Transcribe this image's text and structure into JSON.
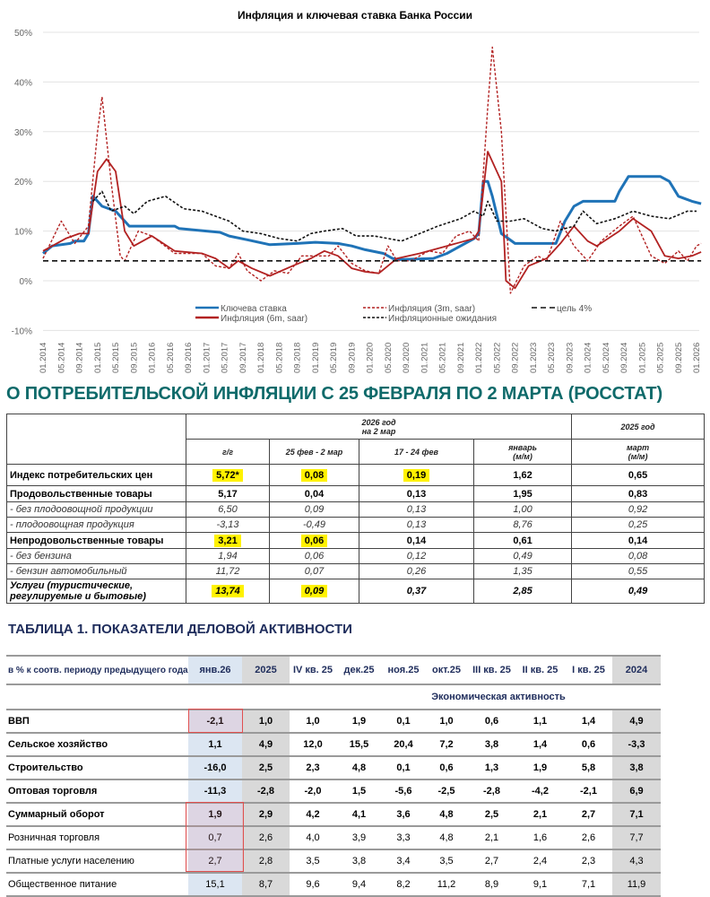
{
  "chart_data": {
    "type": "line",
    "title": "Инфляция и ключевая ставка Банка России",
    "ylim": [
      -10,
      50
    ],
    "yticks": [
      "-10%",
      "0%",
      "10%",
      "20%",
      "30%",
      "40%",
      "50%"
    ],
    "ytick_values": [
      -10,
      0,
      10,
      20,
      30,
      40,
      50
    ],
    "xlim": [
      "2014-01",
      "2026-01"
    ],
    "xticks": [
      "01.2014",
      "05.2014",
      "09.2014",
      "01.2015",
      "05.2015",
      "09.2015",
      "01.2016",
      "05.2016",
      "09.2016",
      "01.2017",
      "05.2017",
      "09.2017",
      "01.2018",
      "05.2018",
      "09.2018",
      "01.2019",
      "05.2019",
      "09.2019",
      "01.2020",
      "05.2020",
      "09.2020",
      "01.2021",
      "05.2021",
      "09.2021",
      "01.2022",
      "05.2022",
      "09.2022",
      "01.2023",
      "05.2023",
      "09.2023",
      "01.2024",
      "05.2024",
      "09.2024",
      "01.2025",
      "05.2025",
      "09.2025",
      "01.2026"
    ],
    "grid": true,
    "legend_position": "bottom",
    "series": [
      {
        "name": "Ключева ставка",
        "color": "#1f73b7",
        "style": "solid",
        "points": [
          [
            "2014-01",
            5.5
          ],
          [
            "2014-03",
            7
          ],
          [
            "2014-07",
            7.5
          ],
          [
            "2014-08",
            8
          ],
          [
            "2014-10",
            8
          ],
          [
            "2014-11",
            9.5
          ],
          [
            "2014-12",
            17
          ],
          [
            "2015-02",
            15
          ],
          [
            "2015-05",
            14
          ],
          [
            "2015-08",
            11
          ],
          [
            "2016-06",
            11
          ],
          [
            "2016-07",
            10.5
          ],
          [
            "2017-01",
            10
          ],
          [
            "2017-04",
            9.75
          ],
          [
            "2017-06",
            9
          ],
          [
            "2017-10",
            8.25
          ],
          [
            "2018-03",
            7.25
          ],
          [
            "2018-09",
            7.5
          ],
          [
            "2019-01",
            7.75
          ],
          [
            "2019-06",
            7.5
          ],
          [
            "2019-09",
            7
          ],
          [
            "2019-12",
            6.25
          ],
          [
            "2020-04",
            5.5
          ],
          [
            "2020-06",
            4.5
          ],
          [
            "2020-07",
            4.25
          ],
          [
            "2021-03",
            4.5
          ],
          [
            "2021-06",
            5.5
          ],
          [
            "2021-10",
            7.5
          ],
          [
            "2021-12",
            8.5
          ],
          [
            "2022-01",
            9.5
          ],
          [
            "2022-02",
            20
          ],
          [
            "2022-03",
            20
          ],
          [
            "2022-04",
            17
          ],
          [
            "2022-06",
            9.5
          ],
          [
            "2022-09",
            7.5
          ],
          [
            "2023-06",
            7.5
          ],
          [
            "2023-08",
            12
          ],
          [
            "2023-10",
            15
          ],
          [
            "2023-12",
            16
          ],
          [
            "2024-07",
            16
          ],
          [
            "2024-08",
            18
          ],
          [
            "2024-10",
            21
          ],
          [
            "2025-05",
            21
          ],
          [
            "2025-07",
            20
          ],
          [
            "2025-09",
            17
          ],
          [
            "2025-12",
            16
          ],
          [
            "2026-02",
            15.5
          ]
        ]
      },
      {
        "name": "Инфляция (6m, saar)",
        "color": "#b22222",
        "style": "solid",
        "points": [
          [
            "2014-01",
            6
          ],
          [
            "2014-06",
            8.5
          ],
          [
            "2014-09",
            9.5
          ],
          [
            "2014-11",
            9.5
          ],
          [
            "2015-01",
            22
          ],
          [
            "2015-03",
            24.5
          ],
          [
            "2015-05",
            22
          ],
          [
            "2015-07",
            10
          ],
          [
            "2015-09",
            7
          ],
          [
            "2016-01",
            9
          ],
          [
            "2016-06",
            6
          ],
          [
            "2016-12",
            5.5
          ],
          [
            "2017-03",
            4.5
          ],
          [
            "2017-06",
            2.5
          ],
          [
            "2017-08",
            4
          ],
          [
            "2017-11",
            2.5
          ],
          [
            "2018-03",
            1
          ],
          [
            "2018-08",
            3
          ],
          [
            "2018-12",
            4.5
          ],
          [
            "2019-03",
            6
          ],
          [
            "2019-06",
            5
          ],
          [
            "2019-09",
            2.5
          ],
          [
            "2019-12",
            1.8
          ],
          [
            "2020-03",
            1.5
          ],
          [
            "2020-07",
            4.5
          ],
          [
            "2020-12",
            5.5
          ],
          [
            "2021-06",
            7
          ],
          [
            "2021-12",
            8.5
          ],
          [
            "2022-01",
            10
          ],
          [
            "2022-03",
            26
          ],
          [
            "2022-06",
            20
          ],
          [
            "2022-07",
            0
          ],
          [
            "2022-09",
            -1.5
          ],
          [
            "2022-12",
            3
          ],
          [
            "2023-04",
            4.5
          ],
          [
            "2023-07",
            7.5
          ],
          [
            "2023-10",
            11
          ],
          [
            "2024-01",
            8
          ],
          [
            "2024-03",
            7
          ],
          [
            "2024-08",
            10
          ],
          [
            "2024-11",
            12.5
          ],
          [
            "2025-03",
            10
          ],
          [
            "2025-06",
            5
          ],
          [
            "2025-09",
            4.5
          ],
          [
            "2025-12",
            5
          ],
          [
            "2026-02",
            5.8
          ]
        ]
      },
      {
        "name": "Инфляция (3m, saar)",
        "color": "#b22222",
        "style": "dashed",
        "points": [
          [
            "2014-01",
            4.5
          ],
          [
            "2014-05",
            12
          ],
          [
            "2014-08",
            7.5
          ],
          [
            "2014-11",
            11
          ],
          [
            "2015-01",
            30
          ],
          [
            "2015-02",
            37
          ],
          [
            "2015-04",
            20
          ],
          [
            "2015-06",
            5
          ],
          [
            "2015-07",
            4
          ],
          [
            "2015-10",
            10
          ],
          [
            "2016-01",
            9
          ],
          [
            "2016-06",
            5.5
          ],
          [
            "2016-12",
            5.5
          ],
          [
            "2017-03",
            3
          ],
          [
            "2017-06",
            2.5
          ],
          [
            "2017-08",
            5.5
          ],
          [
            "2017-10",
            2
          ],
          [
            "2018-01",
            0
          ],
          [
            "2018-04",
            2
          ],
          [
            "2018-07",
            1.5
          ],
          [
            "2018-10",
            5
          ],
          [
            "2019-01",
            5
          ],
          [
            "2019-04",
            5
          ],
          [
            "2019-06",
            7
          ],
          [
            "2019-09",
            3.5
          ],
          [
            "2019-12",
            2
          ],
          [
            "2020-03",
            1.5
          ],
          [
            "2020-05",
            7
          ],
          [
            "2020-07",
            4
          ],
          [
            "2020-10",
            4
          ],
          [
            "2021-02",
            6
          ],
          [
            "2021-05",
            5.5
          ],
          [
            "2021-08",
            9
          ],
          [
            "2021-11",
            10
          ],
          [
            "2022-01",
            8
          ],
          [
            "2022-03",
            35
          ],
          [
            "2022-04",
            47
          ],
          [
            "2022-06",
            30
          ],
          [
            "2022-08",
            -2.5
          ],
          [
            "2022-11",
            3
          ],
          [
            "2023-02",
            5
          ],
          [
            "2023-04",
            4
          ],
          [
            "2023-07",
            12
          ],
          [
            "2023-10",
            7
          ],
          [
            "2024-01",
            4
          ],
          [
            "2024-04",
            8
          ],
          [
            "2024-08",
            11
          ],
          [
            "2024-11",
            13
          ],
          [
            "2025-03",
            5
          ],
          [
            "2025-06",
            3.5
          ],
          [
            "2025-09",
            6
          ],
          [
            "2025-11",
            4
          ],
          [
            "2026-01",
            7
          ],
          [
            "2026-02",
            7.5
          ]
        ]
      },
      {
        "name": "Инфляционные ожидания",
        "color": "#111111",
        "style": "dotted",
        "points": [
          [
            "2014-12",
            16
          ],
          [
            "2015-02",
            18
          ],
          [
            "2015-04",
            14
          ],
          [
            "2015-07",
            15
          ],
          [
            "2015-09",
            13.5
          ],
          [
            "2015-12",
            16
          ],
          [
            "2016-04",
            17
          ],
          [
            "2016-08",
            14.5
          ],
          [
            "2016-12",
            14
          ],
          [
            "2017-03",
            13
          ],
          [
            "2017-06",
            12
          ],
          [
            "2017-09",
            10
          ],
          [
            "2018-01",
            9.5
          ],
          [
            "2018-05",
            8.5
          ],
          [
            "2018-09",
            8
          ],
          [
            "2018-12",
            9.5
          ],
          [
            "2019-03",
            10
          ],
          [
            "2019-07",
            10.5
          ],
          [
            "2019-10",
            9
          ],
          [
            "2020-02",
            9
          ],
          [
            "2020-05",
            8.5
          ],
          [
            "2020-08",
            8
          ],
          [
            "2020-12",
            9.5
          ],
          [
            "2021-04",
            11
          ],
          [
            "2021-09",
            12.5
          ],
          [
            "2021-12",
            14
          ],
          [
            "2022-02",
            13
          ],
          [
            "2022-03",
            16
          ],
          [
            "2022-05",
            12
          ],
          [
            "2022-08",
            12
          ],
          [
            "2022-11",
            12.5
          ],
          [
            "2023-03",
            10.5
          ],
          [
            "2023-06",
            10
          ],
          [
            "2023-10",
            11
          ],
          [
            "2023-12",
            14
          ],
          [
            "2024-03",
            11.5
          ],
          [
            "2024-07",
            12.5
          ],
          [
            "2024-11",
            14
          ],
          [
            "2025-03",
            13
          ],
          [
            "2025-07",
            12.5
          ],
          [
            "2025-11",
            14
          ],
          [
            "2026-01",
            14
          ]
        ]
      },
      {
        "name": "цель 4%",
        "color": "#111111",
        "style": "longdash",
        "points": [
          [
            "2014-01",
            4
          ],
          [
            "2026-02",
            4
          ]
        ]
      }
    ]
  },
  "inflation": {
    "heading": "О ПОТРЕБИТЕЛЬСКОЙ ИНФЛЯЦИИ С 25 ФЕВРАЛЯ ПО 2 МАРТА (РОССТАТ)",
    "group_2026": [
      "2026 год",
      "на 2 мар"
    ],
    "group_2025": "2025 год",
    "columns": [
      "г/г",
      "25 фев - 2 мар",
      "17 - 24 фев",
      [
        "январь",
        "(м/м)"
      ],
      [
        "март",
        "(м/м)"
      ]
    ],
    "highlight_color": "#fff200",
    "rows": [
      {
        "label": "Индекс потребительских цен",
        "style": "b",
        "values": [
          "5,72*",
          "0,08",
          "0,19",
          "1,62",
          "0,65"
        ],
        "highlighted": [
          0,
          1,
          2
        ]
      },
      {
        "label": "Продовольственные товары",
        "style": "b",
        "values": [
          "5,17",
          "0,04",
          "0,13",
          "1,95",
          "0,83"
        ],
        "highlighted": []
      },
      {
        "label": "- без плодоовощной продукции",
        "style": "i",
        "values": [
          "6,50",
          "0,09",
          "0,13",
          "1,00",
          "0,92"
        ],
        "highlighted": []
      },
      {
        "label": "- плодоовощная продукция",
        "style": "i",
        "values": [
          "-3,13",
          "-0,49",
          "0,13",
          "8,76",
          "0,25"
        ],
        "highlighted": []
      },
      {
        "label": "Непродовольственные товары",
        "style": "b",
        "values": [
          "3,21",
          "0,06",
          "0,14",
          "0,61",
          "0,14"
        ],
        "highlighted": [
          0,
          1
        ]
      },
      {
        "label": "- без бензина",
        "style": "i",
        "values": [
          "1,94",
          "0,06",
          "0,12",
          "0,49",
          "0,08"
        ],
        "highlighted": []
      },
      {
        "label": "- бензин автомобильный",
        "style": "i",
        "values": [
          "11,72",
          "0,07",
          "0,26",
          "1,35",
          "0,55"
        ],
        "highlighted": []
      },
      {
        "label": "Услуги (туристические, регулируемые и бытовые)",
        "style": "bi",
        "values": [
          "13,74",
          "0,09",
          "0,37",
          "2,85",
          "0,49"
        ],
        "highlighted": [
          0,
          1
        ]
      }
    ]
  },
  "activity": {
    "heading": "ТАБЛИЦА 1. ПОКАЗАТЕЛИ ДЕЛОВОЙ АКТИВНОСТИ",
    "corner_label": "в % к соотв. периоду предыдущего года",
    "columns": [
      "янв.26",
      "2025",
      "IV кв. 25",
      "дек.25",
      "ноя.25",
      "окт.25",
      "III кв. 25",
      "II кв. 25",
      "I кв. 25",
      "2024"
    ],
    "section": "Экономическая активность",
    "rows": [
      {
        "label": "ВВП",
        "bold": true,
        "values": [
          "-2,1",
          "1,0",
          "1,0",
          "1,9",
          "0,1",
          "1,0",
          "0,6",
          "1,1",
          "1,4",
          "4,9"
        ]
      },
      {
        "label": "Сельское хозяйство",
        "bold": true,
        "values": [
          "1,1",
          "4,9",
          "12,0",
          "15,5",
          "20,4",
          "7,2",
          "3,8",
          "1,4",
          "0,6",
          "-3,3"
        ]
      },
      {
        "label": "Строительство",
        "bold": true,
        "values": [
          "-16,0",
          "2,5",
          "2,3",
          "4,8",
          "0,1",
          "0,6",
          "1,3",
          "1,9",
          "5,8",
          "3,8"
        ]
      },
      {
        "label": "Оптовая торговля",
        "bold": true,
        "values": [
          "-11,3",
          "-2,8",
          "-2,0",
          "1,5",
          "-5,6",
          "-2,5",
          "-2,8",
          "-4,2",
          "-2,1",
          "6,9"
        ]
      },
      {
        "label": "Суммарный оборот",
        "bold": true,
        "values": [
          "1,9",
          "2,9",
          "4,2",
          "4,1",
          "3,6",
          "4,8",
          "2,5",
          "2,1",
          "2,7",
          "7,1"
        ]
      },
      {
        "label": "Розничная торговля",
        "bold": false,
        "values": [
          "0,7",
          "2,6",
          "4,0",
          "3,9",
          "3,3",
          "4,8",
          "2,1",
          "1,6",
          "2,6",
          "7,7"
        ]
      },
      {
        "label": "Платные услуги населению",
        "bold": false,
        "values": [
          "2,7",
          "2,8",
          "3,5",
          "3,8",
          "3,4",
          "3,5",
          "2,7",
          "2,4",
          "2,3",
          "4,3"
        ]
      },
      {
        "label": "Общественное питание",
        "bold": false,
        "values": [
          "15,1",
          "8,7",
          "9,6",
          "9,4",
          "8,2",
          "11,2",
          "8,9",
          "9,1",
          "7,1",
          "11,9"
        ]
      }
    ]
  }
}
